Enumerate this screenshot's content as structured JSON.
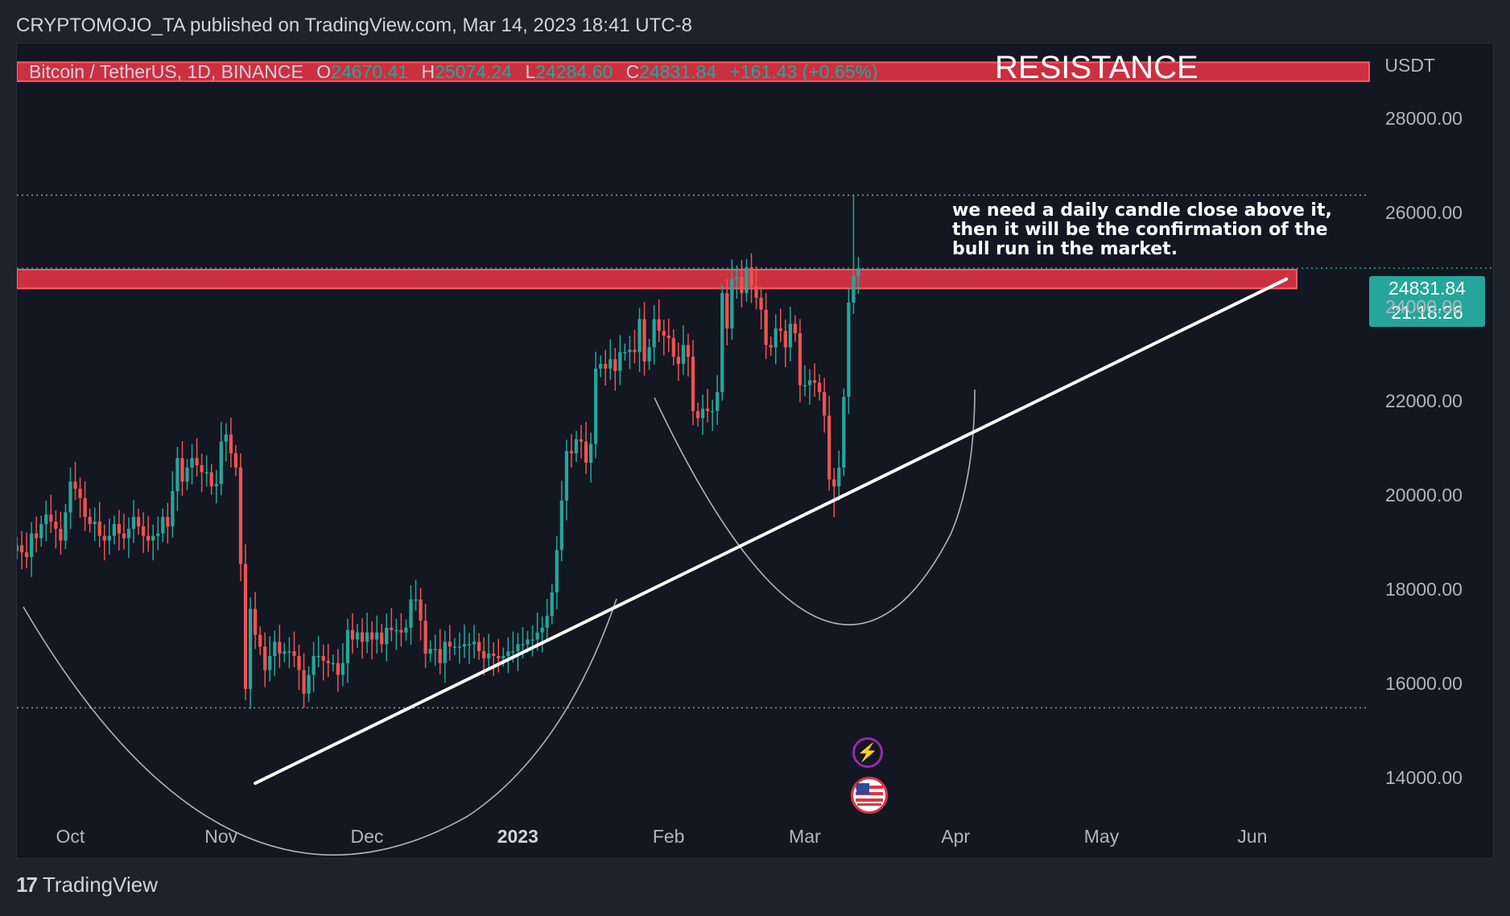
{
  "header": {
    "publisher_line": "CRYPTOMOJO_TA published on TradingView.com, Mar 14, 2023 18:41 UTC-8"
  },
  "legend": {
    "symbol": "Bitcoin / TetherUS, 1D, BINANCE",
    "o_label": "O",
    "o_value": "24670.41",
    "h_label": "H",
    "h_value": "25074.24",
    "l_label": "L",
    "l_value": "24284.60",
    "c_label": "C",
    "c_value": "24831.84",
    "change": "+161.43 (+0.65%)"
  },
  "currency": "USDT",
  "annotations": {
    "resistance_label": "RESISTANCE",
    "note": "we need a daily candle close above it, then it will be the confirmation of the bull run in the market."
  },
  "price_tag": {
    "price": "24831.84",
    "countdown": "21:18:26"
  },
  "footer": {
    "brand": "TradingView"
  },
  "colors": {
    "up": "#26a69a",
    "down": "#ef5350",
    "zone": "#e03344",
    "background": "#131722"
  },
  "events": [
    {
      "icon": "lightning-icon"
    },
    {
      "icon": "us-flag-icon"
    }
  ],
  "chart_data": {
    "type": "candlestick",
    "symbol": "Bitcoin / TetherUS",
    "interval": "1D",
    "ylim": [
      13200,
      29600
    ],
    "y_ticks": [
      "14000.00",
      "16000.00",
      "18000.00",
      "20000.00",
      "22000.00",
      "24000.00",
      "26000.00",
      "28000.00"
    ],
    "x_ticks": [
      {
        "label": "Oct",
        "date": "2022-10-01"
      },
      {
        "label": "Nov",
        "date": "2022-11-01"
      },
      {
        "label": "Dec",
        "date": "2022-12-01"
      },
      {
        "label": "2023",
        "date": "2023-01-01",
        "bold": true
      },
      {
        "label": "Feb",
        "date": "2023-02-01"
      },
      {
        "label": "Mar",
        "date": "2023-03-01"
      },
      {
        "label": "Apr",
        "date": "2023-04-01"
      },
      {
        "label": "May",
        "date": "2023-05-01"
      },
      {
        "label": "Jun",
        "date": "2023-06-01"
      }
    ],
    "x_range": [
      "2022-09-23",
      "2023-06-28"
    ],
    "candles_close": [
      [
        "2022-09-23",
        18950
      ],
      [
        "2022-09-24",
        18800
      ],
      [
        "2022-09-25",
        18700
      ],
      [
        "2022-09-26",
        19200
      ],
      [
        "2022-09-27",
        19100
      ],
      [
        "2022-09-28",
        19400
      ],
      [
        "2022-09-29",
        19600
      ],
      [
        "2022-09-30",
        19450
      ],
      [
        "2022-10-01",
        19300
      ],
      [
        "2022-10-02",
        19050
      ],
      [
        "2022-10-03",
        19650
      ],
      [
        "2022-10-04",
        20300
      ],
      [
        "2022-10-05",
        20150
      ],
      [
        "2022-10-06",
        19950
      ],
      [
        "2022-10-07",
        19550
      ],
      [
        "2022-10-08",
        19400
      ],
      [
        "2022-10-09",
        19450
      ],
      [
        "2022-10-10",
        19150
      ],
      [
        "2022-10-11",
        19050
      ],
      [
        "2022-10-12",
        19150
      ],
      [
        "2022-10-13",
        19400
      ],
      [
        "2022-10-14",
        19200
      ],
      [
        "2022-10-15",
        19100
      ],
      [
        "2022-10-16",
        19300
      ],
      [
        "2022-10-17",
        19550
      ],
      [
        "2022-10-18",
        19350
      ],
      [
        "2022-10-19",
        19150
      ],
      [
        "2022-10-20",
        19050
      ],
      [
        "2022-10-21",
        19150
      ],
      [
        "2022-10-22",
        19200
      ],
      [
        "2022-10-23",
        19550
      ],
      [
        "2022-10-24",
        19350
      ],
      [
        "2022-10-25",
        20100
      ],
      [
        "2022-10-26",
        20800
      ],
      [
        "2022-10-27",
        20300
      ],
      [
        "2022-10-28",
        20600
      ],
      [
        "2022-10-29",
        20800
      ],
      [
        "2022-10-30",
        20650
      ],
      [
        "2022-10-31",
        20500
      ],
      [
        "2022-11-01",
        20500
      ],
      [
        "2022-11-02",
        20200
      ],
      [
        "2022-11-03",
        20250
      ],
      [
        "2022-11-04",
        21150
      ],
      [
        "2022-11-05",
        21300
      ],
      [
        "2022-11-06",
        20900
      ],
      [
        "2022-11-07",
        20600
      ],
      [
        "2022-11-08",
        18550
      ],
      [
        "2022-11-09",
        15900
      ],
      [
        "2022-11-10",
        17600
      ],
      [
        "2022-11-11",
        17050
      ],
      [
        "2022-11-12",
        16800
      ],
      [
        "2022-11-13",
        16300
      ],
      [
        "2022-11-14",
        16600
      ],
      [
        "2022-11-15",
        16900
      ],
      [
        "2022-11-16",
        16650
      ],
      [
        "2022-11-17",
        16700
      ],
      [
        "2022-11-18",
        16700
      ],
      [
        "2022-11-19",
        16600
      ],
      [
        "2022-11-20",
        16300
      ],
      [
        "2022-11-21",
        15800
      ],
      [
        "2022-11-22",
        16200
      ],
      [
        "2022-11-23",
        16600
      ],
      [
        "2022-11-24",
        16600
      ],
      [
        "2022-11-25",
        16500
      ],
      [
        "2022-11-26",
        16450
      ],
      [
        "2022-11-27",
        16450
      ],
      [
        "2022-11-28",
        16200
      ],
      [
        "2022-11-29",
        16450
      ],
      [
        "2022-11-30",
        17150
      ],
      [
        "2022-12-01",
        16950
      ],
      [
        "2022-12-02",
        17100
      ],
      [
        "2022-12-03",
        16900
      ],
      [
        "2022-12-04",
        17100
      ],
      [
        "2022-12-05",
        16950
      ],
      [
        "2022-12-06",
        17100
      ],
      [
        "2022-12-07",
        16850
      ],
      [
        "2022-12-08",
        17200
      ],
      [
        "2022-12-09",
        17150
      ],
      [
        "2022-12-10",
        17150
      ],
      [
        "2022-12-11",
        17100
      ],
      [
        "2022-12-12",
        17200
      ],
      [
        "2022-12-13",
        17800
      ],
      [
        "2022-12-14",
        17800
      ],
      [
        "2022-12-15",
        17350
      ],
      [
        "2022-12-16",
        16650
      ],
      [
        "2022-12-17",
        16750
      ],
      [
        "2022-12-18",
        16750
      ],
      [
        "2022-12-19",
        16450
      ],
      [
        "2022-12-20",
        16900
      ],
      [
        "2022-12-21",
        16800
      ],
      [
        "2022-12-22",
        16800
      ],
      [
        "2022-12-23",
        16800
      ],
      [
        "2022-12-24",
        16850
      ],
      [
        "2022-12-25",
        16850
      ],
      [
        "2022-12-26",
        16900
      ],
      [
        "2022-12-27",
        16700
      ],
      [
        "2022-12-28",
        16550
      ],
      [
        "2022-12-29",
        16650
      ],
      [
        "2022-12-30",
        16600
      ],
      [
        "2022-12-31",
        16550
      ],
      [
        "2023-01-01",
        16600
      ],
      [
        "2023-01-02",
        16700
      ],
      [
        "2023-01-03",
        16700
      ],
      [
        "2023-01-04",
        16850
      ],
      [
        "2023-01-05",
        16850
      ],
      [
        "2023-01-06",
        16950
      ],
      [
        "2023-01-07",
        16950
      ],
      [
        "2023-01-08",
        17100
      ],
      [
        "2023-01-09",
        17200
      ],
      [
        "2023-01-10",
        17450
      ],
      [
        "2023-01-11",
        17950
      ],
      [
        "2023-01-12",
        18850
      ],
      [
        "2023-01-13",
        19900
      ],
      [
        "2023-01-14",
        20950
      ],
      [
        "2023-01-15",
        20900
      ],
      [
        "2023-01-16",
        21200
      ],
      [
        "2023-01-17",
        21150
      ],
      [
        "2023-01-18",
        20700
      ],
      [
        "2023-01-19",
        21100
      ],
      [
        "2023-01-20",
        22700
      ],
      [
        "2023-01-21",
        22800
      ],
      [
        "2023-01-22",
        22700
      ],
      [
        "2023-01-23",
        22900
      ],
      [
        "2023-01-24",
        22650
      ],
      [
        "2023-01-25",
        23050
      ],
      [
        "2023-01-26",
        23050
      ],
      [
        "2023-01-27",
        23100
      ],
      [
        "2023-01-28",
        23050
      ],
      [
        "2023-01-29",
        23750
      ],
      [
        "2023-01-30",
        22850
      ],
      [
        "2023-01-31",
        23150
      ],
      [
        "2023-02-01",
        23750
      ],
      [
        "2023-02-02",
        23500
      ],
      [
        "2023-02-03",
        23400
      ],
      [
        "2023-02-04",
        23350
      ],
      [
        "2023-02-05",
        22950
      ],
      [
        "2023-02-06",
        22800
      ],
      [
        "2023-02-07",
        23200
      ],
      [
        "2023-02-08",
        22950
      ],
      [
        "2023-02-09",
        21800
      ],
      [
        "2023-02-10",
        21650
      ],
      [
        "2023-02-11",
        21850
      ],
      [
        "2023-02-12",
        21800
      ],
      [
        "2023-02-13",
        21800
      ],
      [
        "2023-02-14",
        22200
      ],
      [
        "2023-02-15",
        24300
      ],
      [
        "2023-02-16",
        23550
      ],
      [
        "2023-02-17",
        24600
      ],
      [
        "2023-02-18",
        24650
      ],
      [
        "2023-02-19",
        24300
      ],
      [
        "2023-02-20",
        24850
      ],
      [
        "2023-02-21",
        24450
      ],
      [
        "2023-02-22",
        24200
      ],
      [
        "2023-02-23",
        23950
      ],
      [
        "2023-02-24",
        23200
      ],
      [
        "2023-02-25",
        23150
      ],
      [
        "2023-02-26",
        23550
      ],
      [
        "2023-02-27",
        23500
      ],
      [
        "2023-02-28",
        23150
      ],
      [
        "2023-03-01",
        23650
      ],
      [
        "2023-03-02",
        23450
      ],
      [
        "2023-03-03",
        22350
      ],
      [
        "2023-03-04",
        22350
      ],
      [
        "2023-03-05",
        22450
      ],
      [
        "2023-03-06",
        22400
      ],
      [
        "2023-03-07",
        22200
      ],
      [
        "2023-03-08",
        21700
      ],
      [
        "2023-03-09",
        20350
      ],
      [
        "2023-03-10",
        20200
      ],
      [
        "2023-03-11",
        20600
      ],
      [
        "2023-03-12",
        22100
      ],
      [
        "2023-03-13",
        24100
      ],
      [
        "2023-03-14",
        24670
      ],
      [
        "2023-03-15",
        24831.84
      ]
    ],
    "candles_ohlc_current": {
      "date": "2023-03-15",
      "open": 24670.41,
      "high": 25074.24,
      "low": 24284.6,
      "close": 24831.84,
      "change": 161.43,
      "change_pct": 0.65
    },
    "resistance_zones": [
      {
        "low": 28800,
        "high": 29200
      },
      {
        "low": 24400,
        "high": 24800
      }
    ],
    "horizontal_dotted_levels": [
      26380,
      24831.84,
      15500
    ],
    "trendline": [
      {
        "date": "2022-11-11",
        "price": 13900
      },
      {
        "date": "2023-06-11",
        "price": 24600
      }
    ]
  }
}
